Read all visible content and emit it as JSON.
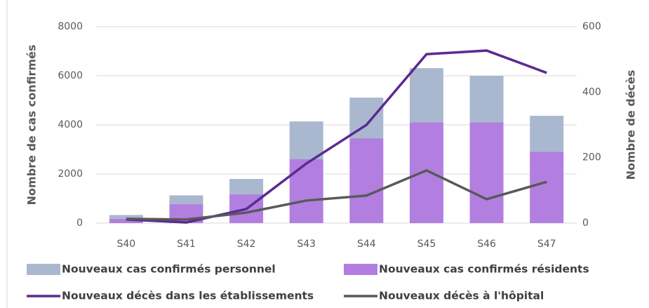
{
  "chart_data": {
    "type": "bar-line",
    "categories": [
      "S40",
      "S41",
      "S42",
      "S43",
      "S44",
      "S45",
      "S46",
      "S47"
    ],
    "ylabel": "Nombre de cas confirmés",
    "y2label": "Nombre de décès",
    "ylim": [
      0,
      8000
    ],
    "yticks": [
      0,
      2000,
      4000,
      6000,
      8000
    ],
    "y2lim": [
      0,
      600
    ],
    "y2ticks": [
      0,
      200,
      400,
      600
    ],
    "grid": true,
    "stacked": true,
    "series": [
      {
        "name": "Nouveaux cas confirmés personnel",
        "type": "bar",
        "color": "#aab8cf",
        "values": [
          150,
          360,
          630,
          1540,
          1650,
          2200,
          1890,
          1460
        ]
      },
      {
        "name": "Nouveaux cas confirmés résidents",
        "type": "bar",
        "color": "#b27fe0",
        "values": [
          180,
          770,
          1170,
          2600,
          3460,
          4110,
          4110,
          2910
        ]
      },
      {
        "name": "Nouveaux décès dans les établissements",
        "type": "line",
        "axis": "y2",
        "color": "#5b2a92",
        "values": [
          11,
          2,
          43,
          182,
          300,
          516,
          527,
          459
        ]
      },
      {
        "name": "Nouveaux décès à l'hôpital",
        "type": "line",
        "axis": "y2",
        "color": "#595959",
        "values": [
          13,
          11,
          32,
          69,
          84,
          161,
          73,
          126
        ]
      }
    ]
  }
}
